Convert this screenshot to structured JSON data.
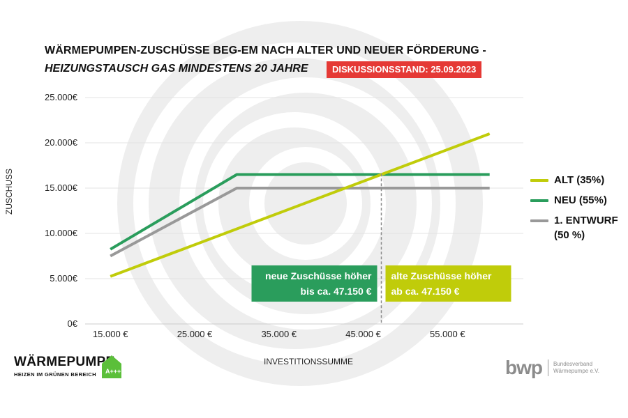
{
  "title": {
    "line1": "WÄRMEPUMPEN-ZUSCHÜSSE BEG-EM NACH ALTER UND NEUER FÖRDERUNG -",
    "line2": "HEIZUNGSTAUSCH GAS MINDESTENS 20 JAHRE",
    "badge": "DISKUSSIONSSTAND: 25.09.2023"
  },
  "colors": {
    "alt": "#c0cc0a",
    "neu": "#2a9d5c",
    "entwurf": "#999999",
    "badge": "#e53935",
    "watermark": "#eeeeee",
    "grid": "#e3e3e3",
    "reference_line": "#8a8a8a"
  },
  "legend": {
    "alt": "ALT (35%)",
    "neu": "NEU (55%)",
    "entwurf": "1. ENTWURF (50 %)"
  },
  "chart_data": {
    "type": "line",
    "title": "WÄRMEPUMPEN-ZUSCHÜSSE BEG-EM NACH ALTER UND NEUER FÖRDERUNG - HEIZUNGSTAUSCH GAS MINDESTENS 20 JAHRE",
    "xlabel": "INVESTITIONSSUMME",
    "ylabel": "ZUSCHUSS",
    "xlim": [
      12000,
      64000
    ],
    "ylim": [
      0,
      25000
    ],
    "x_ticks": [
      15000,
      25000,
      35000,
      45000,
      55000
    ],
    "x_tick_labels": [
      "15.000 €",
      "25.000 €",
      "35.000 €",
      "45.000 €",
      "55.000 €"
    ],
    "y_ticks": [
      0,
      5000,
      10000,
      15000,
      20000,
      25000
    ],
    "y_tick_labels": [
      "0€",
      "5.000€",
      "10.000€",
      "15.000€",
      "20.000€",
      "25.000€"
    ],
    "grid": true,
    "series": [
      {
        "key": "alt",
        "name": "ALT (35%)",
        "x": [
          15000,
          60000
        ],
        "y": [
          5250,
          21000
        ]
      },
      {
        "key": "neu",
        "name": "NEU (55%)",
        "x": [
          15000,
          30000,
          60000
        ],
        "y": [
          8250,
          16500,
          16500
        ]
      },
      {
        "key": "entwurf",
        "name": "1. ENTWURF (50 %)",
        "x": [
          15000,
          30000,
          60000
        ],
        "y": [
          7500,
          15000,
          15000
        ]
      }
    ],
    "reference_line": {
      "x": 47150
    },
    "annotations": [
      {
        "key": "neu",
        "line1": "neue Zuschüsse höher",
        "line2": "bis ca. 47.150 €",
        "side": "left",
        "y": 4850
      },
      {
        "key": "alt",
        "line1": "alte Zuschüsse höher",
        "line2": "ab ca. 47.150 €",
        "side": "right",
        "y": 4850
      }
    ]
  },
  "logos": {
    "left_word": "WÄRMEPUMPE",
    "left_sub": "HEIZEN IM GRÜNEN BEREICH",
    "left_badge": "A+++",
    "right_word": "bwp",
    "right_org": "Bundesverband Wärmepumpe e.V."
  }
}
